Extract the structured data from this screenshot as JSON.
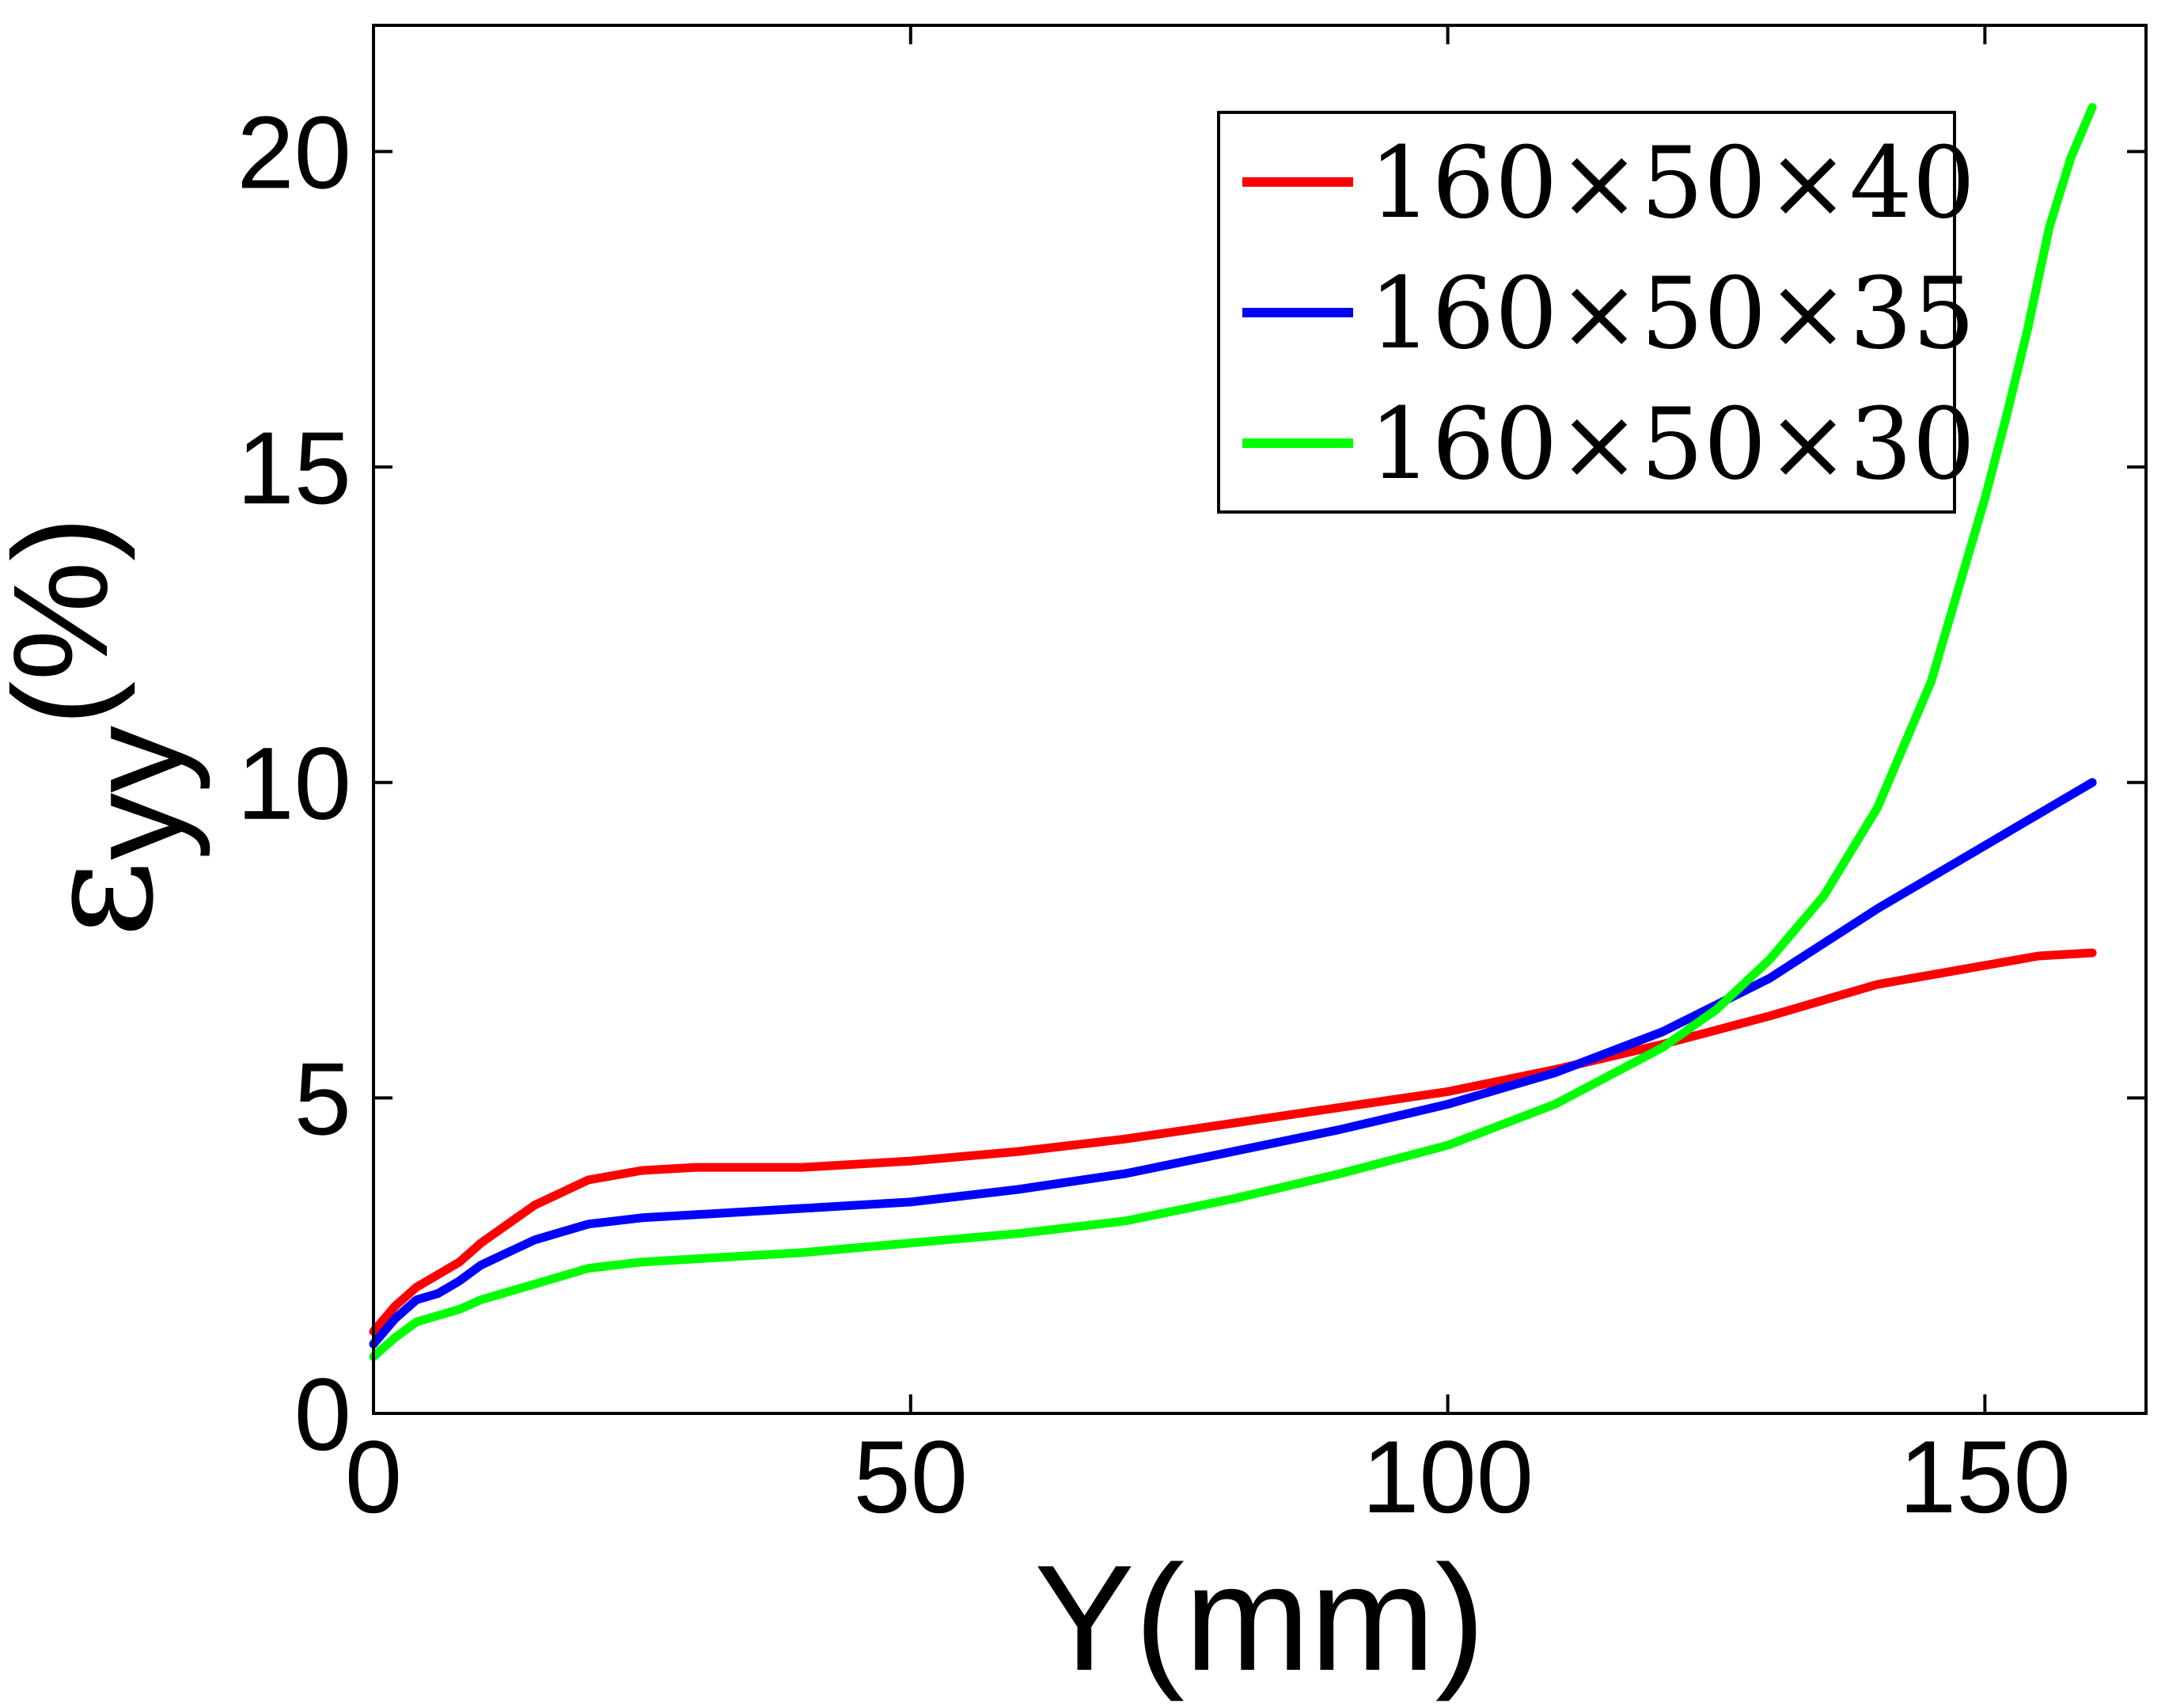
{
  "chart_data": {
    "type": "line",
    "title": "",
    "xlabel": "Y(mm)",
    "ylabel": {
      "symbol": "ε",
      "subscript": "yy",
      "unit": "(%)"
    },
    "xlim": [
      0,
      165
    ],
    "ylim": [
      0,
      22
    ],
    "x_ticks": [
      0,
      50,
      100,
      150
    ],
    "y_ticks": [
      0,
      5,
      10,
      15,
      20
    ],
    "grid": false,
    "legend_position": "top-right",
    "series": [
      {
        "name": "160×50×40",
        "color": "#ff0000",
        "x": [
          0,
          2,
          4,
          6,
          8,
          10,
          15,
          20,
          25,
          30,
          40,
          50,
          60,
          70,
          80,
          90,
          100,
          110,
          120,
          130,
          140,
          150,
          155,
          160
        ],
        "y": [
          1.3,
          1.7,
          2.0,
          2.2,
          2.4,
          2.7,
          3.3,
          3.7,
          3.85,
          3.9,
          3.9,
          4.0,
          4.15,
          4.35,
          4.6,
          4.85,
          5.1,
          5.45,
          5.85,
          6.3,
          6.8,
          7.1,
          7.25,
          7.3
        ]
      },
      {
        "name": "160×50×35",
        "color": "#0000ff",
        "x": [
          0,
          2,
          4,
          6,
          8,
          10,
          15,
          20,
          25,
          30,
          40,
          50,
          60,
          70,
          80,
          90,
          100,
          110,
          120,
          130,
          140,
          150,
          155,
          160
        ],
        "y": [
          1.1,
          1.5,
          1.8,
          1.9,
          2.1,
          2.35,
          2.75,
          3.0,
          3.1,
          3.15,
          3.25,
          3.35,
          3.55,
          3.8,
          4.15,
          4.5,
          4.9,
          5.4,
          6.05,
          6.9,
          8.0,
          9.0,
          9.5,
          10.0
        ]
      },
      {
        "name": "160×50×30",
        "color": "#00ff00",
        "x": [
          0,
          2,
          4,
          6,
          8,
          10,
          15,
          20,
          25,
          30,
          40,
          50,
          60,
          70,
          80,
          90,
          100,
          110,
          120,
          125,
          130,
          135,
          140,
          145,
          150,
          152,
          154,
          156,
          158,
          160
        ],
        "y": [
          0.9,
          1.2,
          1.45,
          1.55,
          1.65,
          1.8,
          2.05,
          2.3,
          2.4,
          2.45,
          2.55,
          2.7,
          2.85,
          3.05,
          3.4,
          3.8,
          4.25,
          4.9,
          5.8,
          6.4,
          7.2,
          8.2,
          9.6,
          11.6,
          14.5,
          15.8,
          17.2,
          18.8,
          19.9,
          20.7
        ]
      }
    ]
  }
}
